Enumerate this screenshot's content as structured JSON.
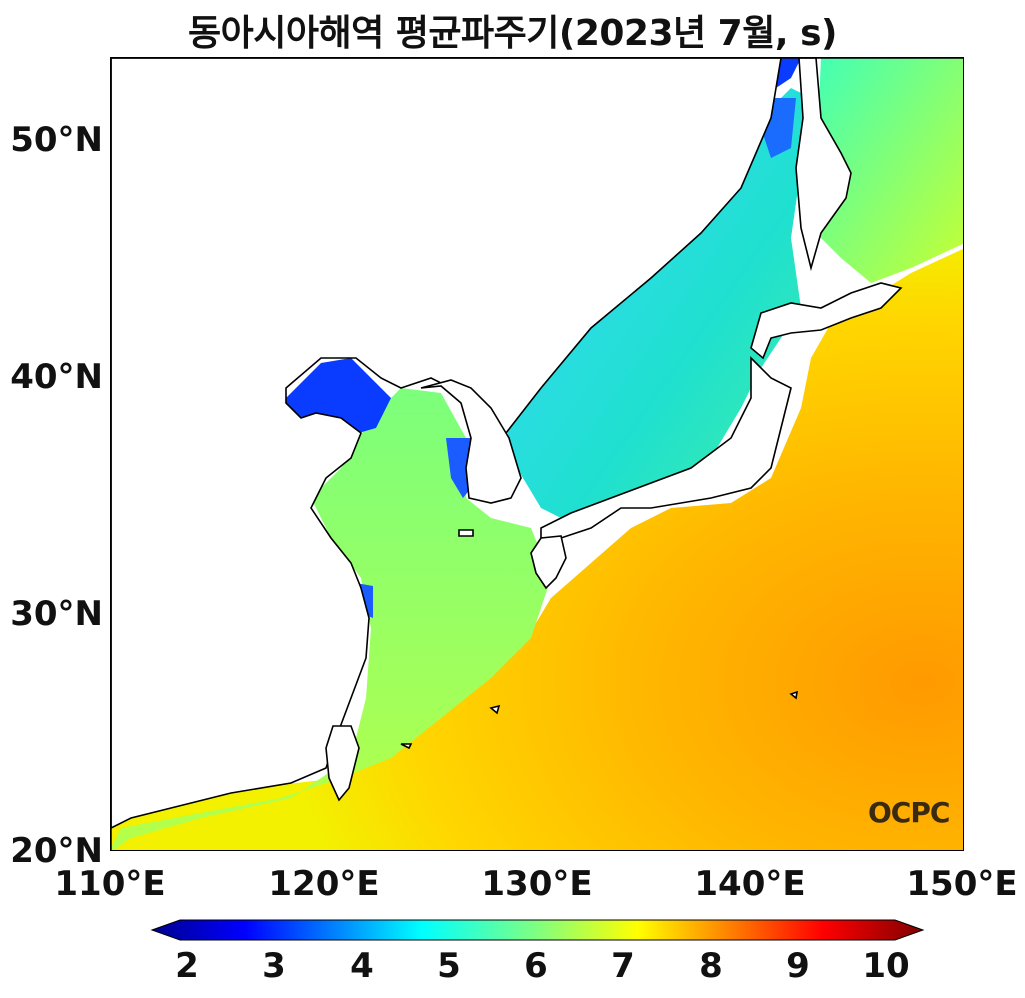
{
  "title": "동아시아해역 평균파주기(2023년 7월, s)",
  "logo_text": "OCPC",
  "axes": {
    "y_ticks": [
      "20°N",
      "30°N",
      "40°N",
      "50°N"
    ],
    "x_ticks": [
      "110°E",
      "120°E",
      "130°E",
      "140°E",
      "150°E"
    ]
  },
  "colorbar": {
    "labels": [
      "2",
      "3",
      "4",
      "5",
      "6",
      "7",
      "8",
      "9",
      "10"
    ],
    "min": 2,
    "max": 10,
    "colormap": "jet",
    "extend": "both"
  },
  "chart_data": {
    "type": "heatmap",
    "title": "동아시아해역 평균파주기(2023년 7월, s)",
    "xlim": [
      110,
      150
    ],
    "ylim": [
      20,
      53.5
    ],
    "units": "s",
    "regions": [
      {
        "name": "Bohai Sea",
        "value": 3.5
      },
      {
        "name": "Yellow Sea",
        "value": 6.0
      },
      {
        "name": "East China Sea",
        "value": 6.3
      },
      {
        "name": "East Sea / Sea of Japan",
        "value": 5.2
      },
      {
        "name": "Sea of Okhotsk (Tatar Strait)",
        "value": 4.5
      },
      {
        "name": "Northwest Pacific",
        "value": 7.8
      },
      {
        "name": "Pacific east of Japan (30°N, 148°E)",
        "value": 8.2
      },
      {
        "name": "South China Sea coast",
        "value": 6.2
      }
    ]
  }
}
